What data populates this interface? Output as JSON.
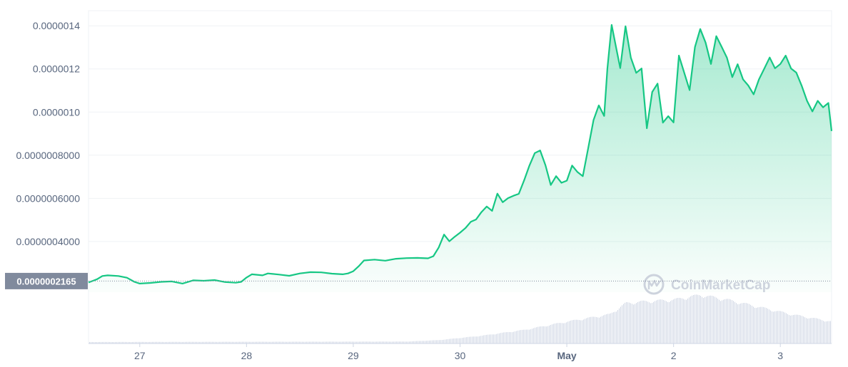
{
  "watermark": "CoinMarketCap",
  "current_price_label": "0.0000002165",
  "chart_data": {
    "type": "area",
    "title": "",
    "xlabel": "",
    "ylabel": "",
    "x_ticks": [
      "27",
      "28",
      "29",
      "30",
      "May",
      "2",
      "3"
    ],
    "y_ticks": [
      "0.0000004000",
      "0.0000006000",
      "0.0000008000",
      "0.0000010",
      "0.0000012",
      "0.0000014"
    ],
    "xlim": [
      -0.48,
      6.48
    ],
    "ylim": [
      1.65e-07,
      1.47e-06
    ],
    "grid": true,
    "colors": {
      "line": "#16c784",
      "fill_top": "#16c784",
      "volume": "#cfd6e4",
      "axis_text": "#58667e",
      "current_label_bg": "#808a9d"
    },
    "series": [
      {
        "values": [
          [
            -0.48,
            2.1e-07
          ],
          [
            -0.4,
            2.25e-07
          ],
          [
            -0.35,
            2.4e-07
          ],
          [
            -0.3,
            2.43e-07
          ],
          [
            -0.2,
            2.4e-07
          ],
          [
            -0.12,
            2.32e-07
          ],
          [
            -0.05,
            2.13e-07
          ],
          [
            0.0,
            2.05e-07
          ],
          [
            0.1,
            2.08e-07
          ],
          [
            0.2,
            2.13e-07
          ],
          [
            0.3,
            2.15e-07
          ],
          [
            0.4,
            2.05e-07
          ],
          [
            0.5,
            2.2e-07
          ],
          [
            0.6,
            2.18e-07
          ],
          [
            0.7,
            2.21e-07
          ],
          [
            0.8,
            2.12e-07
          ],
          [
            0.9,
            2.09e-07
          ],
          [
            0.95,
            2.13e-07
          ],
          [
            1.0,
            2.33e-07
          ],
          [
            1.05,
            2.48e-07
          ],
          [
            1.15,
            2.43e-07
          ],
          [
            1.2,
            2.52e-07
          ],
          [
            1.3,
            2.47e-07
          ],
          [
            1.4,
            2.41e-07
          ],
          [
            1.5,
            2.52e-07
          ],
          [
            1.6,
            2.58e-07
          ],
          [
            1.7,
            2.57e-07
          ],
          [
            1.8,
            2.51e-07
          ],
          [
            1.9,
            2.48e-07
          ],
          [
            1.95,
            2.52e-07
          ],
          [
            2.0,
            2.62e-07
          ],
          [
            2.05,
            2.85e-07
          ],
          [
            2.1,
            3.12e-07
          ],
          [
            2.2,
            3.16e-07
          ],
          [
            2.3,
            3.11e-07
          ],
          [
            2.4,
            3.2e-07
          ],
          [
            2.5,
            3.23e-07
          ],
          [
            2.6,
            3.24e-07
          ],
          [
            2.7,
            3.22e-07
          ],
          [
            2.75,
            3.32e-07
          ],
          [
            2.8,
            3.72e-07
          ],
          [
            2.85,
            4.32e-07
          ],
          [
            2.9,
            4.01e-07
          ],
          [
            2.95,
            4.22e-07
          ],
          [
            3.0,
            4.41e-07
          ],
          [
            3.05,
            4.62e-07
          ],
          [
            3.1,
            4.91e-07
          ],
          [
            3.15,
            5.02e-07
          ],
          [
            3.2,
            5.36e-07
          ],
          [
            3.25,
            5.62e-07
          ],
          [
            3.3,
            5.42e-07
          ],
          [
            3.35,
            6.22e-07
          ],
          [
            3.4,
            5.82e-07
          ],
          [
            3.45,
            6.01e-07
          ],
          [
            3.5,
            6.12e-07
          ],
          [
            3.55,
            6.21e-07
          ],
          [
            3.6,
            6.83e-07
          ],
          [
            3.65,
            7.52e-07
          ],
          [
            3.7,
            8.1e-07
          ],
          [
            3.75,
            8.22e-07
          ],
          [
            3.8,
            7.53e-07
          ],
          [
            3.85,
            6.62e-07
          ],
          [
            3.9,
            7.03e-07
          ],
          [
            3.95,
            6.72e-07
          ],
          [
            4.0,
            6.82e-07
          ],
          [
            4.05,
            7.52e-07
          ],
          [
            4.1,
            7.22e-07
          ],
          [
            4.15,
            7.03e-07
          ],
          [
            4.2,
            8.32e-07
          ],
          [
            4.25,
            9.63e-07
          ],
          [
            4.3,
            1.031e-06
          ],
          [
            4.35,
            9.82e-07
          ],
          [
            4.38,
            1.201e-06
          ],
          [
            4.42,
            1.404e-06
          ],
          [
            4.46,
            1.303e-06
          ],
          [
            4.5,
            1.204e-06
          ],
          [
            4.55,
            1.398e-06
          ],
          [
            4.6,
            1.252e-06
          ],
          [
            4.65,
            1.182e-06
          ],
          [
            4.7,
            1.202e-06
          ],
          [
            4.75,
            9.25e-07
          ],
          [
            4.8,
            1.093e-06
          ],
          [
            4.85,
            1.132e-06
          ],
          [
            4.9,
            9.51e-07
          ],
          [
            4.95,
            9.81e-07
          ],
          [
            5.0,
            9.52e-07
          ],
          [
            5.05,
            1.262e-06
          ],
          [
            5.1,
            1.182e-06
          ],
          [
            5.15,
            1.102e-06
          ],
          [
            5.2,
            1.302e-06
          ],
          [
            5.25,
            1.385e-06
          ],
          [
            5.3,
            1.322e-06
          ],
          [
            5.35,
            1.223e-06
          ],
          [
            5.4,
            1.352e-06
          ],
          [
            5.45,
            1.303e-06
          ],
          [
            5.5,
            1.252e-06
          ],
          [
            5.55,
            1.162e-06
          ],
          [
            5.6,
            1.222e-06
          ],
          [
            5.65,
            1.152e-06
          ],
          [
            5.7,
            1.123e-06
          ],
          [
            5.75,
            1.082e-06
          ],
          [
            5.8,
            1.152e-06
          ],
          [
            5.85,
            1.202e-06
          ],
          [
            5.9,
            1.253e-06
          ],
          [
            5.95,
            1.203e-06
          ],
          [
            6.0,
            1.223e-06
          ],
          [
            6.05,
            1.262e-06
          ],
          [
            6.1,
            1.202e-06
          ],
          [
            6.15,
            1.183e-06
          ],
          [
            6.2,
            1.122e-06
          ],
          [
            6.25,
            1.052e-06
          ],
          [
            6.3,
            1.003e-06
          ],
          [
            6.35,
            1.052e-06
          ],
          [
            6.4,
            1.022e-06
          ],
          [
            6.45,
            1.042e-06
          ],
          [
            6.48,
            9.12e-07
          ]
        ]
      }
    ],
    "volume_relative": [
      [
        -0.48,
        0.03
      ],
      [
        2.5,
        0.04
      ],
      [
        2.8,
        0.07
      ],
      [
        3.2,
        0.16
      ],
      [
        3.6,
        0.28
      ],
      [
        4.0,
        0.45
      ],
      [
        4.4,
        0.6
      ],
      [
        4.55,
        0.83
      ],
      [
        4.7,
        0.86
      ],
      [
        5.0,
        0.9
      ],
      [
        5.25,
        1.0
      ],
      [
        5.5,
        0.9
      ],
      [
        5.8,
        0.75
      ],
      [
        6.1,
        0.6
      ],
      [
        6.48,
        0.45
      ]
    ]
  }
}
